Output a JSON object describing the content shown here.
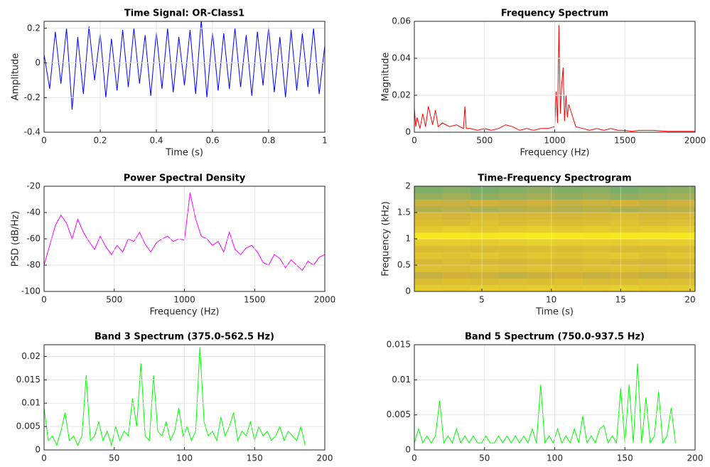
{
  "chart_data": [
    {
      "type": "line",
      "title": "Time Signal: OR-Class1",
      "xlabel": "Time (s)",
      "ylabel": "Amplitude",
      "color": "#0000ff",
      "grid": true,
      "xlim": [
        0,
        1
      ],
      "xticks": [
        0,
        0.2,
        0.4,
        0.6,
        0.8,
        1
      ],
      "ylim": [
        -0.4,
        0.24
      ],
      "yticks": [
        -0.4,
        -0.2,
        0,
        0.2
      ],
      "x": [
        0,
        0.02,
        0.04,
        0.06,
        0.08,
        0.1,
        0.12,
        0.14,
        0.16,
        0.18,
        0.2,
        0.22,
        0.24,
        0.26,
        0.28,
        0.3,
        0.32,
        0.34,
        0.36,
        0.38,
        0.4,
        0.42,
        0.44,
        0.46,
        0.48,
        0.5,
        0.52,
        0.54,
        0.56,
        0.58,
        0.6,
        0.62,
        0.64,
        0.66,
        0.68,
        0.7,
        0.72,
        0.74,
        0.76,
        0.78,
        0.8,
        0.82,
        0.84,
        0.86,
        0.88,
        0.9,
        0.92,
        0.94,
        0.96,
        0.98,
        1
      ],
      "values": [
        0.05,
        -0.15,
        0.18,
        -0.12,
        0.2,
        -0.27,
        0.15,
        -0.18,
        0.21,
        -0.1,
        0.17,
        -0.2,
        0.14,
        -0.16,
        0.19,
        -0.14,
        0.2,
        -0.12,
        0.16,
        -0.19,
        0.18,
        -0.15,
        0.2,
        -0.17,
        0.15,
        -0.13,
        0.19,
        -0.18,
        0.25,
        -0.2,
        0.18,
        -0.16,
        0.17,
        -0.15,
        0.2,
        -0.14,
        0.16,
        -0.19,
        0.18,
        -0.13,
        0.21,
        -0.17,
        0.15,
        -0.2,
        0.19,
        -0.16,
        0.17,
        -0.14,
        0.2,
        -0.18,
        0.1
      ]
    },
    {
      "type": "line",
      "title": "Frequency Spectrum",
      "xlabel": "Frequency (Hz)",
      "ylabel": "Magnitude",
      "color": "#ff0000",
      "grid": true,
      "xlim": [
        0,
        2000
      ],
      "xticks": [
        0,
        500,
        1000,
        1500,
        2000
      ],
      "ylim": [
        0,
        0.06
      ],
      "yticks": [
        0,
        0.02,
        0.04,
        0.06
      ],
      "x": [
        0,
        10,
        20,
        40,
        60,
        80,
        100,
        130,
        150,
        170,
        200,
        250,
        300,
        350,
        360,
        370,
        400,
        450,
        500,
        550,
        600,
        650,
        700,
        750,
        800,
        850,
        900,
        950,
        1000,
        1010,
        1020,
        1030,
        1040,
        1050,
        1060,
        1070,
        1080,
        1090,
        1100,
        1150,
        1200,
        1250,
        1300,
        1350,
        1400,
        1450,
        1500,
        1550,
        1600,
        1700,
        1800,
        1900,
        2000
      ],
      "values": [
        0.013,
        0.003,
        0.008,
        0.002,
        0.01,
        0.003,
        0.014,
        0.004,
        0.012,
        0.003,
        0.005,
        0.003,
        0.004,
        0.002,
        0.014,
        0.002,
        0.002,
        0.001,
        0.002,
        0.001,
        0.002,
        0.004,
        0.003,
        0.001,
        0.002,
        0.001,
        0.002,
        0.002,
        0.003,
        0.022,
        0.005,
        0.058,
        0.01,
        0.026,
        0.035,
        0.006,
        0.02,
        0.008,
        0.015,
        0.003,
        0.002,
        0.001,
        0.002,
        0.001,
        0.002,
        0.001,
        0.001,
        0.0005,
        0.001,
        0.001,
        0.0005,
        0.0005,
        0.0005
      ]
    },
    {
      "type": "line",
      "title": "Power Spectral Density",
      "xlabel": "Frequency (Hz)",
      "ylabel": "PSD (dB/Hz)",
      "color": "#ff00ff",
      "grid": true,
      "xlim": [
        0,
        2000
      ],
      "xticks": [
        0,
        500,
        1000,
        1500,
        2000
      ],
      "ylim": [
        -100,
        -20
      ],
      "yticks": [
        -100,
        -80,
        -60,
        -40,
        -20
      ],
      "x": [
        0,
        40,
        80,
        120,
        160,
        200,
        240,
        280,
        320,
        360,
        400,
        440,
        480,
        520,
        560,
        600,
        640,
        680,
        720,
        760,
        800,
        840,
        880,
        920,
        960,
        1000,
        1040,
        1080,
        1120,
        1160,
        1200,
        1240,
        1280,
        1320,
        1360,
        1400,
        1440,
        1480,
        1520,
        1560,
        1600,
        1640,
        1680,
        1720,
        1760,
        1800,
        1840,
        1880,
        1920,
        1960,
        2000
      ],
      "values": [
        -80,
        -65,
        -50,
        -42,
        -48,
        -60,
        -45,
        -55,
        -62,
        -68,
        -58,
        -66,
        -72,
        -65,
        -70,
        -60,
        -62,
        -55,
        -64,
        -70,
        -63,
        -60,
        -58,
        -62,
        -60,
        -61,
        -25,
        -45,
        -58,
        -60,
        -65,
        -62,
        -70,
        -55,
        -68,
        -72,
        -67,
        -65,
        -70,
        -78,
        -80,
        -72,
        -75,
        -82,
        -76,
        -80,
        -84,
        -77,
        -80,
        -74,
        -72
      ]
    },
    {
      "type": "heatmap",
      "title": "Time-Frequency Spectrogram",
      "xlabel": "Time (s)",
      "ylabel": "Frequency (kHz)",
      "grid": true,
      "xlim": [
        0.14,
        20.36
      ],
      "xticks": [
        5,
        10,
        15,
        20
      ],
      "ylim": [
        0,
        2
      ],
      "yticks": [
        0,
        0.5,
        1,
        1.5,
        2
      ],
      "colormap": [
        "#29a99a",
        "#d4b23a",
        "#f9ef1d"
      ],
      "clim": [
        0,
        1
      ],
      "z": [
        [
          0.72,
          0.7,
          0.74,
          0.71,
          0.73,
          0.7,
          0.72,
          0.75,
          0.71,
          0.73
        ],
        [
          0.6,
          0.62,
          0.58,
          0.61,
          0.6,
          0.63,
          0.59,
          0.6,
          0.62,
          0.61
        ],
        [
          0.45,
          0.5,
          0.48,
          0.44,
          0.47,
          0.5,
          0.46,
          0.49,
          0.45,
          0.48
        ],
        [
          0.62,
          0.6,
          0.64,
          0.61,
          0.63,
          0.6,
          0.62,
          0.65,
          0.61,
          0.63
        ],
        [
          0.55,
          0.58,
          0.56,
          0.54,
          0.57,
          0.55,
          0.58,
          0.56,
          0.54,
          0.57
        ],
        [
          0.66,
          0.64,
          0.68,
          0.65,
          0.67,
          0.64,
          0.66,
          0.69,
          0.65,
          0.67
        ],
        [
          0.58,
          0.6,
          0.57,
          0.59,
          0.61,
          0.58,
          0.6,
          0.57,
          0.59,
          0.6
        ],
        [
          0.72,
          0.74,
          0.71,
          0.73,
          0.75,
          0.72,
          0.74,
          0.71,
          0.73,
          0.74
        ],
        [
          0.95,
          0.96,
          0.94,
          0.95,
          0.97,
          0.95,
          0.94,
          0.96,
          0.95,
          0.96
        ],
        [
          0.7,
          0.72,
          0.69,
          0.71,
          0.73,
          0.7,
          0.72,
          0.69,
          0.71,
          0.72
        ],
        [
          0.6,
          0.58,
          0.62,
          0.59,
          0.61,
          0.58,
          0.6,
          0.63,
          0.59,
          0.61
        ],
        [
          0.55,
          0.52,
          0.57,
          0.54,
          0.56,
          0.53,
          0.55,
          0.58,
          0.54,
          0.56
        ],
        [
          0.4,
          0.42,
          0.38,
          0.41,
          0.43,
          0.4,
          0.42,
          0.39,
          0.41,
          0.43
        ],
        [
          0.48,
          0.46,
          0.5,
          0.47,
          0.49,
          0.46,
          0.48,
          0.51,
          0.47,
          0.49
        ],
        [
          0.32,
          0.35,
          0.3,
          0.33,
          0.36,
          0.31,
          0.34,
          0.3,
          0.33,
          0.35
        ],
        [
          0.25,
          0.28,
          0.24,
          0.27,
          0.3,
          0.26,
          0.28,
          0.24,
          0.27,
          0.29
        ]
      ]
    },
    {
      "type": "line",
      "title": "Band 3 Spectrum (375.0-562.5 Hz)",
      "color": "#00ff00",
      "grid": true,
      "xlim": [
        0,
        200
      ],
      "xticks": [
        0,
        50,
        100,
        150,
        200
      ],
      "ylim": [
        0,
        0.0225
      ],
      "yticks": [
        0,
        0.005,
        0.01,
        0.015,
        0.02
      ],
      "x": [
        0,
        3,
        6,
        9,
        12,
        15,
        18,
        21,
        24,
        27,
        30,
        33,
        36,
        39,
        42,
        45,
        48,
        51,
        54,
        57,
        60,
        63,
        66,
        69,
        72,
        75,
        78,
        81,
        84,
        87,
        90,
        93,
        96,
        99,
        102,
        105,
        108,
        111,
        114,
        117,
        120,
        123,
        126,
        129,
        132,
        135,
        138,
        141,
        144,
        147,
        150,
        153,
        156,
        159,
        162,
        165,
        168,
        171,
        174,
        177,
        180,
        183,
        186
      ],
      "values": [
        0.009,
        0.002,
        0.003,
        0.001,
        0.004,
        0.008,
        0.002,
        0.003,
        0.001,
        0.003,
        0.016,
        0.002,
        0.003,
        0.006,
        0.002,
        0.004,
        0.001,
        0.005,
        0.002,
        0.004,
        0.003,
        0.011,
        0.005,
        0.0185,
        0.003,
        0.002,
        0.016,
        0.004,
        0.003,
        0.006,
        0.002,
        0.004,
        0.009,
        0.003,
        0.005,
        0.002,
        0.004,
        0.022,
        0.006,
        0.003,
        0.004,
        0.002,
        0.007,
        0.003,
        0.005,
        0.008,
        0.002,
        0.004,
        0.003,
        0.006,
        0.002,
        0.005,
        0.003,
        0.004,
        0.002,
        0.003,
        0.005,
        0.002,
        0.004,
        0.003,
        0.002,
        0.005,
        0.001
      ]
    },
    {
      "type": "line",
      "title": "Band 5 Spectrum (750.0-937.5 Hz)",
      "color": "#00ff00",
      "grid": true,
      "xlim": [
        0,
        200
      ],
      "xticks": [
        0,
        50,
        100,
        150,
        200
      ],
      "ylim": [
        0,
        0.015
      ],
      "yticks": [
        0,
        0.005,
        0.01,
        0.015
      ],
      "x": [
        0,
        3,
        6,
        9,
        12,
        15,
        18,
        21,
        24,
        27,
        30,
        33,
        36,
        39,
        42,
        45,
        48,
        51,
        54,
        57,
        60,
        63,
        66,
        69,
        72,
        75,
        78,
        81,
        84,
        87,
        90,
        93,
        96,
        99,
        102,
        105,
        108,
        111,
        114,
        117,
        120,
        123,
        126,
        129,
        132,
        135,
        138,
        141,
        144,
        147,
        150,
        153,
        156,
        159,
        162,
        165,
        168,
        171,
        174,
        177,
        180,
        183,
        186
      ],
      "values": [
        0.001,
        0.003,
        0.001,
        0.002,
        0.001,
        0.002,
        0.007,
        0.001,
        0.002,
        0.001,
        0.003,
        0.001,
        0.002,
        0.001,
        0.002,
        0.001,
        0.001,
        0.002,
        0.001,
        0.001,
        0.002,
        0.001,
        0.002,
        0.001,
        0.002,
        0.001,
        0.002,
        0.001,
        0.003,
        0.001,
        0.0093,
        0.001,
        0.002,
        0.001,
        0.003,
        0.001,
        0.002,
        0.001,
        0.003,
        0.001,
        0.0048,
        0.001,
        0.002,
        0.001,
        0.003,
        0.0035,
        0.001,
        0.002,
        0.001,
        0.0088,
        0.001,
        0.0093,
        0.001,
        0.0123,
        0.001,
        0.0075,
        0.001,
        0.002,
        0.0083,
        0.001,
        0.002,
        0.006,
        0.001
      ]
    }
  ]
}
